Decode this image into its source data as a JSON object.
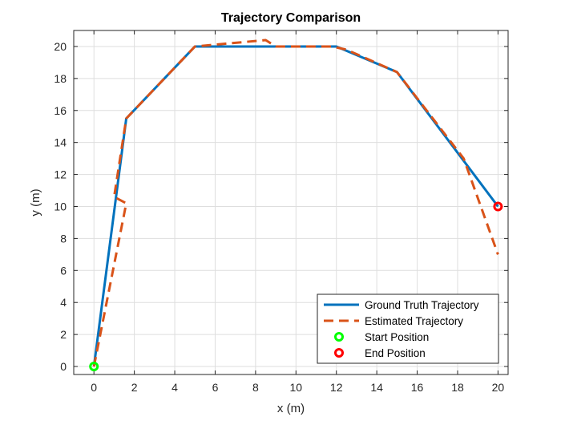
{
  "chart_data": {
    "type": "line",
    "title": "Trajectory Comparison",
    "xlabel": "x (m)",
    "ylabel": "y (m)",
    "xlim": [
      -1,
      20.5
    ],
    "ylim": [
      -0.5,
      21
    ],
    "xticks": [
      0,
      2,
      4,
      6,
      8,
      10,
      12,
      14,
      16,
      18,
      20
    ],
    "yticks": [
      0,
      2,
      4,
      6,
      8,
      10,
      12,
      14,
      16,
      18,
      20
    ],
    "grid": true,
    "legend_position": "bottom-right",
    "series": [
      {
        "name": "Ground Truth Trajectory",
        "style": "solid",
        "color": "#0072BD",
        "x": [
          0,
          1.6,
          5,
          12,
          15,
          20
        ],
        "y": [
          0,
          15.5,
          20,
          20,
          18.4,
          10
        ]
      },
      {
        "name": "Estimated Trajectory",
        "style": "dashed",
        "color": "#D95319",
        "x": [
          0,
          1.6,
          1.0,
          1.6,
          5,
          8.5,
          9.0,
          11.8,
          12.5,
          15,
          18.3,
          20
        ],
        "y": [
          0,
          10.2,
          10.6,
          15.5,
          20,
          20.4,
          20,
          20,
          19.8,
          18.4,
          13,
          7
        ]
      },
      {
        "name": "Start Position",
        "style": "marker",
        "color": "#00FF00",
        "x": [
          0
        ],
        "y": [
          0
        ]
      },
      {
        "name": "End Position",
        "style": "marker",
        "color": "#FF0000",
        "x": [
          20
        ],
        "y": [
          10
        ]
      }
    ]
  }
}
